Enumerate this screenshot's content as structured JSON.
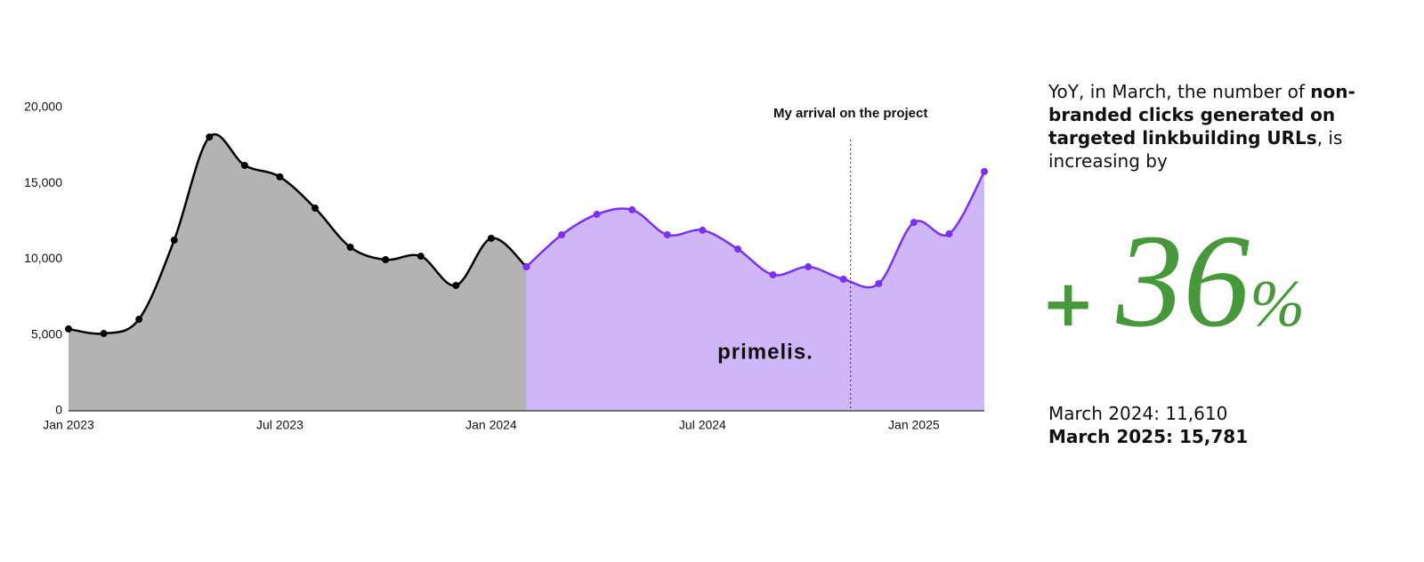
{
  "chart_data": {
    "type": "area",
    "x": [
      "2023-01",
      "2023-02",
      "2023-03",
      "2023-04",
      "2023-05",
      "2023-06",
      "2023-07",
      "2023-08",
      "2023-09",
      "2023-10",
      "2023-11",
      "2023-12",
      "2024-01",
      "2024-02",
      "2024-03",
      "2024-04",
      "2024-05",
      "2024-06",
      "2024-07",
      "2024-08",
      "2024-09",
      "2024-10",
      "2024-11",
      "2024-12",
      "2025-01",
      "2025-02",
      "2025-03"
    ],
    "series": [
      {
        "color": "#000000",
        "area_color": "#b3b3b3",
        "values": [
          5400,
          5100,
          6040,
          11260,
          18060,
          16190,
          15430,
          13370,
          10790,
          9970,
          10200,
          8270,
          11380,
          9500,
          null,
          null,
          null,
          null,
          null,
          null,
          null,
          null,
          null,
          null,
          null,
          null,
          null
        ]
      },
      {
        "color": "#7b2ff7",
        "area_color": "#cfb6f7",
        "values": [
          null,
          null,
          null,
          null,
          null,
          null,
          null,
          null,
          null,
          null,
          null,
          null,
          null,
          9500,
          11610,
          12960,
          13260,
          11610,
          11910,
          10670,
          8970,
          9500,
          8680,
          8390,
          12430,
          11670,
          15781
        ]
      }
    ],
    "xlim": [
      "2023-01",
      "2025-03"
    ],
    "xticks": [
      {
        "value": "2023-01",
        "label": "Jan 2023"
      },
      {
        "value": "2023-07",
        "label": "Jul 2023"
      },
      {
        "value": "2024-01",
        "label": "Jan 2024"
      },
      {
        "value": "2024-07",
        "label": "Jul 2024"
      },
      {
        "value": "2025-01",
        "label": "Jan 2025"
      }
    ],
    "ylim": [
      0,
      20000
    ],
    "yticks": [
      0,
      {
        "value": 5000,
        "label": "5,000"
      },
      {
        "value": 10000,
        "label": "10,000"
      },
      {
        "value": 15000,
        "label": "15,000"
      },
      {
        "value": 20000,
        "label": "20,000"
      }
    ],
    "annotation": {
      "text": "My arrival on the project",
      "x": "2024-11"
    },
    "logo": "primelis."
  },
  "side_text": {
    "intro": [
      "YoY, in March, the number of ",
      "non-branded clicks generated on targeted linkbuilding URLs",
      ", is increasing by"
    ],
    "big_number": {
      "prefix": "+",
      "value": 36,
      "suffix": "%"
    },
    "comparison": [
      "March 2024: 11,610",
      "March 2025: 15,781"
    ]
  }
}
